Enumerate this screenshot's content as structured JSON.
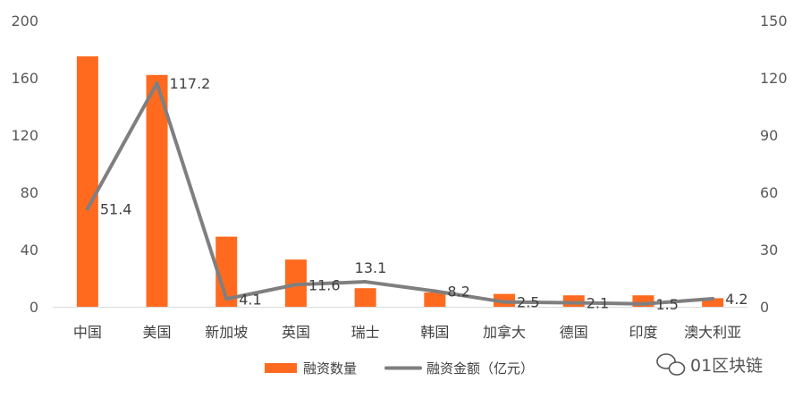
{
  "chart_data": {
    "type": "bar",
    "categories": [
      "中国",
      "美国",
      "新加坡",
      "英国",
      "瑞士",
      "韩国",
      "加拿大",
      "德国",
      "印度",
      "澳大利亚"
    ],
    "series": [
      {
        "name": "融资数量",
        "type": "bar",
        "axis": "left",
        "color": "#FF6A1F",
        "values": [
          175,
          162,
          49,
          33,
          13,
          10,
          9,
          8,
          8,
          6
        ]
      },
      {
        "name": "融资金额（亿元）",
        "type": "line",
        "axis": "right",
        "color": "#7F7F7F",
        "values": [
          51.4,
          117.2,
          4.1,
          11.6,
          13.1,
          8.2,
          2.5,
          2.1,
          1.5,
          4.2
        ],
        "labels": [
          "51.4",
          "117.2",
          "4.1",
          "11.6",
          "13.1",
          "8.2",
          "2.5",
          "2.1",
          "1.5",
          "4.2"
        ]
      }
    ],
    "y_left": {
      "min": 0,
      "max": 200,
      "ticks": [
        "0",
        "40",
        "80",
        "120",
        "160",
        "200"
      ]
    },
    "y_right": {
      "min": 0,
      "max": 150,
      "ticks": [
        "0",
        "30",
        "60",
        "90",
        "120",
        "150"
      ]
    },
    "legend_position": "bottom",
    "grid": false
  },
  "watermark": {
    "text": "01区块链",
    "icon": "wechat-icon"
  }
}
